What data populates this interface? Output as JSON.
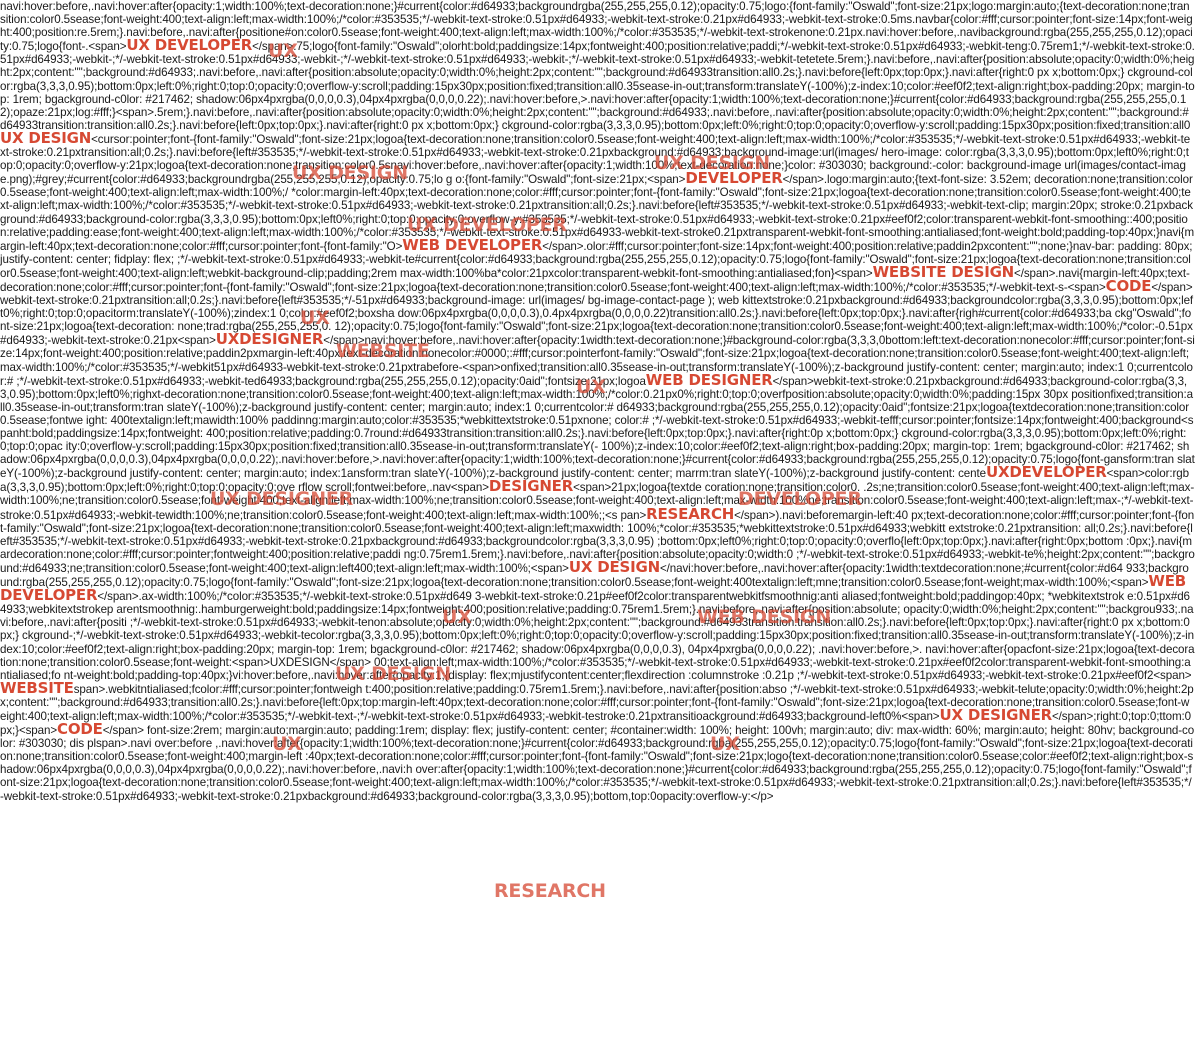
{
  "segments": [
    {
      "t": "navi:hover:before,.navi:hover:after{opacity:1;width:100%;text-decoration:none;}#current{color:#d64933;backgroundrgba(255,255,255,0.12);opacity:0.75;logo:{font-family:\"Oswald\";font-size:21px;logo:margin:auto;{text-decoration:none;transition:color0.5sease;font-weight:400;text-align:left;max-width:100%;/*color:#353535;*/-webkit-text-stroke:0.51px#d64933;-webkit-text-stroke:0.21px#d64933;-webkit-text-stroke:0.5ms.navbar{color:#fff;cursor:pointer;font-size:14px;font-weight:400;position:re.5rem;}.navi:before,.navi:after{positione#on:color0.5sease;font-weight:400;text-align:left;max-width:100%;/*color:#353535;*/-webkit-text-strokenone:0.21px.navi:hover:before,.navibackground:rgba(255,255,255,0.12);opacity:0.75;logo{font-.<span>"
    },
    {
      "h": "UX DEVELOPER"
    },
    {
      "t": "</span>.75;logo{font-family:\"Oswald\";olorht:bold;paddingsize:14px;fontweight:400;position:relative;paddi;*/-webkit-text-stroke:0.51px#d64933;-webkit-teng:0.75rem1;*/-webkit-text-stroke:0.51px#d64933;-webkit-;*/-webkit-text-stroke:0.51px#d64933;-webkit-;*/-webkit-text-stroke:0.51px#d64933;-webkit-;*/-webkit-text-stroke:0.51px#d64933;-webkit-tetetete.5rem;}.navi:before,.navi:after{position:absolute;opacity:0;width:0%;height:2px;content:\"\";background:#d64933;.navi:before,.navi:after{position:absolute;opacity:0;width:0%;height:2px;content:\"\";background:#d64933transition:all0.2s;}.navi:before{left:0px;top:0px;}.navi:after{right:0 px x;bottom:0px;} ckground-color:rgba(3,3,3,0.95);bottom:0px;left:0%;right:0;top:0;opacity:0;overflow-y:scroll;padding:15px30px;position:fixed;transition:all0.35sease-in-out;transform:translateY(-100%);z-index:10;color:#eef0f2;text-align:right;box-padding:20px; margin-top: 1rem; bgackground-c0lor: #217462; shadow:06px4pxrgba(0,0,0,0.3),04px4pxrgba(0,0,0,0.22);.navi:hover:before,>.navi:hover:after{opacity:1;width:100%;text-decoration:none;}#current{color:#d64933;background:rgba(255,255,255,0.12);opaze:21px;log:#fff;}<span>.5rem;}.navi:before,.navi:after{position:absolute;opacity:0;width:0%;height:2px;content:\"\";background:#d64933;.navi:before,.navi:after{position:absolute;opacity:0;width:0%;height:2px;content:\"\";background:#d64933transition:transition:all0.2s;}.navi:before{left:0px;top:0px;}.navi:after{right:0 px x;bottom:0px;} ckground-color:rgba(3,3,3,0.95);bottom:0px;left:0%;right:0;top:0;opacity:0;overflow-y:scroll;padding:15px30px;position:fixed;transition:all0"
    },
    {
      "h": "UX DESIGN"
    },
    {
      "t": "<cursor:pointer;font-{font-family:\"Oswald\";font-size:21px;logoa{text-decoration:none;transition:color0.5sease;font-weight:400;text-align:left;max-width:100%;/*color:#353535;*/-webkit-text-stroke:0.51px#d64933;-webkit-text-stroke:0.21pxtransition:all;0.2s;}.navi:before{left#353535;*/-webkit-text-stroke:0.51px#d64933;-webkit-text-stroke:0.21pxbackground:#d64933;background-image:url(images/ hero-image: color:rgba(3,3,3,0.95);bottom:0px;left0%;right:0;top:0;opacity:0;overflow-y:21px;logoa{text-decoration:none;transition:color0.5snavi:hover:before,.navi:hover:after{opacity:1;width:100%;text-decoration:none;}color: #303030; background:-color: background-image url(images/contact-image.png);#grey;#current{color:#d64933;backgroundrgba(255,255,255,0.12);opacity:0.75;lo g o:{font-family:\"Oswald\";font-size:21px;<span>"
    },
    {
      "h": "DEVELOPER"
    },
    {
      "t": "</span>.logo:margin:auto;{text-font-size: 3.52em; decoration:none;transition:color0.5sease;font-weight:400;text-align:left;max-width:100%;/  *color:margin-left:40px;text-decoration:none;color:#fff;cursor:pointer;font-{font-family:\"Oswald\";font-size:21px;logoa{text-decoration:none;transition:color0.5sease;font-weight:400;text-align:left;max-width:100%;/*color:#353535;*/-webkit-text-stroke:0.51px#d64933;-webkit-text-stroke:0.21pxtransition:all;0.2s;}.navi:before{left#353535;*/-webkit-text-stroke:0.51px#d64933;-webkit-text-clip; margin:20px; stroke:0.21pxbackground:#d64933;background-color:rgba(3,3,3,0.95);bottom:0px;left0%;right:0;top:0;opacity:0;overflow-y:#353535;*/-webkit-text-stroke:0.51px#d64933;-webkit-text-stroke:0.21px#eef0f2;color:transparent-webkit-font-smoothing::400;position:relative;padding:ease;font-weight:400;text-align:left;max-width:100%;/*color:#353535;*/-webkit-text-stroke:0.51px#d64933-webkit-text-stroke0.21pxtransparent-webkit-font-smoothing:antialiased;font-weight:bold;padding-top:40px;}navi{margin-left:40px;text-decoration:none;color:#fff;cursor:pointer;font-{font-family:\"O>"
    },
    {
      "h": "WEB DEVELOPER"
    },
    {
      "t": "</span>.olor:#fff;cursor:pointer;font-size:14px;font-weight:400;position:relative;paddin2pxcontent:\"\";none;}nav-bar: padding: 80px; justify-content: center; fidplay: flex; ;*/-webkit-text-stroke:0.51px#d64933;-webkit-te#current{color:#d64933;background:rgba(255,255,255,0.12);opacity:0.75;logo{font-family:\"Oswald\";font-size:21px;logoa{text-decoration:none;transition:color0.5sease;font-weight:400;text-align:left;webkit-background-clip;padding;2rem max-width:100%ba*color:21pxcolor:transparent-webkit-font-smoothing:antialiased;fon}<span>"
    },
    {
      "h": "WEBSITE DESIGN"
    },
    {
      "t": "</span>.navi{margin-left:40px;text-decoration:none;color:#fff;cursor:pointer;font-{font-family:\"Oswald\";font-size:21px;logoa{text-decoration:none;transition:color0.5sease;font-weight:400;text-align:left;max-width:100%;/*color:#353535;*/-webkit-text-s-<span>"
    },
    {
      "h": "CODE"
    },
    {
      "t": "</span>webkit-text-stroke:0.21pxtransition:all;0.2s;}.navi:before{left#353535;*/-51px#d64933;background-image: url(images/ bg-image-contact-page ); web kittextstroke:0.21pxbackground:#d64933;backgroundcolor:rgba(3,3,3,0.95);bottom:0px;left0%;right:0;top:0;opacitorm:translateY(-100%);zindex:1 0;color:#eef0f2;boxsha dow:06px4pxrgba(0,0,0,0.3),0.4px4pxrgba(0,0,0,0.22)transition:all0.2s;}.navi:before{left:0px;top:0px;}.navi:after{righ#current{color:#d64933;ba ckg\"Oswald\";font-size:21px;logoa{text-decoration: none;trad:rgba(255,255,255,0. 12);opacity:0.75;logo{font-family:\"Oswald\";font-size:21px;logoa{text-decoration:none;transition:color0.5sease;font-weight:400;text-align:left;max-width:100%;/*color:-0.51px#d64933;-webkit-text-stroke:0.21px<span>"
    },
    {
      "h": "UXDESIGNER"
    },
    {
      "t": "</span>navi:hover:before,.navi:hover:after{opacity:1width:text-decoration:none;}#background-color:rgba(3,3,3,0bottom:left:text-decoration:nonecolor:#fff;cursor:pointer;font-size:14px;font-weight:400;position:relative;paddin2pxmargin-left:40px;text-decoration:nonecolor:#0000;:#fff;cursor:pointerfont-family:\"Oswald\";font-size:21px;logoa{text-decoration:none;transition:color0.5sease;font-weight:400;text-align:left;max-width:100%;/*color:#353535;*/-webkit51px#d64933-webkit-text-stroke:0.21pxtrabefore-<span>onfixed;transition:all0.35sease-in-out;transform:translateY(-100%);z-background justify-content: center; margin:auto; index:1 0;currentcolor:# ;*/-webkit-text-stroke:0.51px#d64933;-webkit-ted64933;background:rgba(255,255,255,0.12);opacity:0aid\";fontsize:21px;logoa"
    },
    {
      "h": "WEB DESIGNER"
    },
    {
      "t": "</span>webkit-text-stroke:0.21pxbackground:#d64933;background-color:rgba(3,3,3,0.95);bottom:0px;left0%;righxt-decoration:none;transition:color0.5sease;font-weight:400;text-align:left;max-width:100%;/*color:0.21px0%;right:0;top:0;overfposition:absolute;opacity:0;width:0%;padding:15px 30px positionfixed;transition:all0.35sease-in-out;transform:tran slateY(-100%);z-background justify-content: center; margin:auto; index:1 0;currentcolor:# d64933;background:rgba(255,255,255,0.12);opacity:0aid\";fontsize:21px;logoa{textdecoration:none;transition:color0.5sease;fontwe ight: 400textalign:left;mawidth:100% paddinng:margin:auto;color:#353535;*webkittextstroke:0.51pxnone;  color:# ;*/-webkit-text-stroke:0.51px#d64933;-webkit-tefff;cursor:pointer;fontsize:14px;fontweight:400;background<spanht:bold;paddingsize:14px;fontweight: 400;position:relative;padding:0.7round:#d64933transition:transition:all0.2s;}.navi:before{left:0px;top:0px;}.navi:after{right:0p x;bottom:0px;} ckground-color:rgba(3,3,3,0.95);bottom:0px;left:0%;right:0;top:0;opac ity:0;overflow-y:scroll;padding:15px30px;position:fixed;transition:all0.35sease-in-out;transform:translateY(- 100%);z-index:10;color:#eef0f2;text-align:right;box-padding:20px; margin-top: 1rem; bgackground-c0lor: #217462; shadow:06px4pxrgba(0,0,0,0.3),04px4pxrgba(0,0,0,0.22);.navi:hover:before,>.navi:hover:after{opacity:1;width:100%;text-decoration:none;}#current{color:#d64933;background:rgba(255,255,255,0.12);opacity:0.75;logo{font-gansform:tran slateY(-100%);z-background justify-content: center; margin:auto; index:1ansform:tran slateY(-100%);z-background justify-content: center; marrm:tran slateY(-100%);z-background justify-content: cente"
    },
    {
      "h": "UXDEVELOPER"
    },
    {
      "t": "<span>color:rgba(3,3,3,0.95);bottom:0px;left:0%;right:0;top:0;opacity:0;ove rflow scroll;fontwei:before,.nav<span>"
    },
    {
      "h": "DESIGNER"
    },
    {
      "t": "<span>21px;logoa{textde coration:none;transition:color0. .2s;ne;transition:color0.5sease;font-weight:400;text-align:left;max-width:100%;ne;transition:color0.5sease;font-weight:400;text-align:left;max-width:100%;ne;transition:color0.5sease;font-weight:400;text-align:left;max-width:100%ne;transition:color0.5sease;font-weight:400;text-align:left;max-;*/-webkit-text-stroke:0.51px#d64933;-webkit-tewidth:100%;ne;transition:color0.5sease;font-weight:400;text-align:left;max-width:100%;;<s pan>"
    },
    {
      "h": "RESEARCH"
    },
    {
      "t": "</span>).navi:beforemargin-left:40 px;text-decoration:none;color:#fff;cursor:pointer;font-{font-family:\"Oswald\";font-size:21px;logoa{text-decoration:none;transition:color0.5sease;font-weight:400;text-align:left;maxwidth: 100%;*color:#353535;*webkittextstroke:0.51px#d64933;webkitt extstroke:0.21pxtransition: all;0.2s;}.navi:before{left#353535;*/-webkit-text-stroke:0.51px#d64933;-webkit-text-stroke:0.21pxbackground:#d64933;backgroundcolor:rgba(3,3,3,0.95) ;bottom:0px;left0%;right:0;top:0;opacity:0;overflo{left:0px;top:0px;}.navi:after{right:0px;bottom :0px;}.navi{mardecoration:none;color:#fff;cursor:pointer;fontweight:400;position:relative;paddi ng:0.75rem1.5rem;}.navi:before,.navi:after{position:absolute;opacity:0;width:0 ;*/-webkit-text-stroke:0.51px#d64933;-webkit-te%;height:2px;content:\"\";background:#d64933;ne;transition:color0.5sease;font-weight:400;text-align:left400;text-align:left;max-width:100%;<span>"
    },
    {
      "h": "UX DESIGN"
    },
    {
      "t": "</navi:hover:before,.navi:hover:after{opacity:1width:textdecoration:none;#current{color:#d64 933;background:rgba(255,255,255,0.12);opacity:0.75;logo{font-family:\"Oswald\";font-size:21px;logoa{text-decoration:none;transition:color0.5sease;font-weight:400textalign:left;mne;transition:color0.5sease;font-weight;max-width:100%;<span>"
    },
    {
      "h": "WEB DEVELOPER"
    },
    {
      "t": "</span>.ax-width:100%;/*color:#353535;*/-webkit-text-stroke:0.51px#d649 3-webkit-text-stroke:0.21p#eef0f2color:transparentwebkitfsmoothnig:anti aliased;fontweight:bold;paddingop:40px; *webkitextstrok e:0.51px#d64933;webkitextstrokep arentsmoothnig:.hamburgerweight:bold;paddingsize:14px;fontweight:400;position:relative;padding:0.75rem1.5rem;}.navi:before,.navi:after{position:absolute; opacity:0;width:0%;height:2px;content:\"\";backgrou933;.navi:before,.navi:after{positi ;*/-webkit-text-stroke:0.51px#d64933;-webkit-tenon:absolute;opacity:0;width:0%;height:2px;content:\"\";background:#d64933transition:transition:all0.2s;}.navi:before{left:0px;top:0px;}.navi:after{right:0 px x;bottom:0px;} ckground-;*/-webkit-text-stroke:0.51px#d64933;-webkit-tecolor:rgba(3,3,3,0.95);bottom:0px;left:0%;right:0;top:0;opacity:0;overflow-y:scroll;padding:15px30px;position:fixed;transition:all0.35sease-in-out;transform:translateY(-100%);z-index:10;color:#eef0f2;text-align:right;box-padding:20px; margin-top: 1rem; bgackground-c0lor: #217462; shadow:06px4pxrgba(0,0,0,0.3), 04px4pxrgba(0,0,0,0.22); .navi:hover:before,>. navi:hover:after{opacfont-size:21px;logoa{text-decoration:none;transition:color0.5sease;font-weight:<span>UXDESIGN</span> 00;text-align:left;max-width:100%;/*color:#353535;*/-webkit-text-stroke:0.51px#d64933;-webkit-text-stroke:0.21px#eef0f2color:transparent-webkit-font-smoothing:antialiased;fo nt-weight:bold;padding-top:40px;}vi:hover:before,.navi:hover:after{opacity:1;{display: flex;mjustifycontent:center;flexdirection :columnstroke :0.21p ;*/-webkit-text-stroke:0.51px#d64933;-webkit-text-stroke:0.21px#eef0f2<span>"
    },
    {
      "h": "WEBSITE"
    },
    {
      "t": "span>.webkitntialiased;fcolor:#fff;cursor:pointer;fontweigh t:400;position:relative;padding:0.75rem1.5rem;}.navi:before,.navi:after{position:abso ;*/-webkit-text-stroke:0.51px#d64933;-webkit-telute;opacity:0;width:0%;height:2px;content:\"\";background:#d64933;transition:all0.2s;}.navi:before{left:0px;top:margin-left:40px;text-decoration:none;color:#fff;cursor:pointer;font-{font-family:\"Oswald\";font-size:21px;logoa{text-decoration:none;transition:color0.5sease;font-weight:400;text-align:left;max-width:100%;/*color:#353535;*/-webkit-text-;*/-webkit-text-stroke:0.51px#d64933;-webkit-testroke:0.21pxtransitioackground:#d64933;background-left0%<span>"
    },
    {
      "h": "UX DESIGNER"
    },
    {
      "t": "</span>;right:0;top:0;ttom:0px;}<span>"
    },
    {
      "h": "CODE"
    },
    {
      "t": "</span> font-size:2rem; margin:auto;margin:auto; padding:1rem; display: flex; justify-content: center; #container:width: 100%; height: 100vh; margin:auto; div: max-width: 60%; margin:auto; height: 80hv; background-color: #303030; dis plspan>.navi over:before ,.navi:hover:after{opacity:1;width:100%;text-decoration:none;}#current{color:#d64933;background:rgba(255,255,255,0.12);opacity:0.75;logo{font-family:\"Oswald\";font-size:21px;logoa{text-decoration:none;transition:color0.5sease;font-weight:400;margin-left  :40px;text-decoration:none;color:#fff;cursor:pointer;font-{font-family:\"Oswald\";font-size:21px;logo{text-decoration:none;transition:color0.5sease;color:#eef0f2;text-align:right;box-shadow:06px4pxrgba(0,0,0,0.3),04px4pxrgba(0,0,0,0.22);.navi:hover:before,.navi:h over:after{opacity:1;width:100%;text-decoration:none;}#current{color:#d64933;background:rgba(255,255,255,0.12);opacity:0.75;logo{font-family:\"Oswald\";font-size:21px;logoa{text-decoration:none;transition:color0.5sease;font-weight:400;text-align:left;max-width:100%;/*color:#353535;*/-webkit-text-stroke:0.51px#d64933;-webkit-text-stroke:0.21pxtransition:all;0.2s;}.navi:before{left#353535;*/-webkit-text-stroke:0.51px#d64933;-webkit-text-stroke:0.21pxbackground:#d64933;background-color:rgba(3,3,3,0.95);bottom,top:0opacity:overflow-y:</p>"
    }
  ],
  "floaters": [
    "UX",
    "UX DESIGN",
    "UX DESIGN",
    "UX DEVELOPER",
    "UX",
    "WEBSITE",
    "UX",
    "UX DESIGNER",
    "DEVELOPER",
    "UX",
    "WEB DESIGN",
    "UX DESIGN",
    "UX",
    "UX",
    "RESEARCH"
  ],
  "colors": {
    "accent": "#d64933",
    "text": "#1a1a1a",
    "background": "#ffffff"
  }
}
